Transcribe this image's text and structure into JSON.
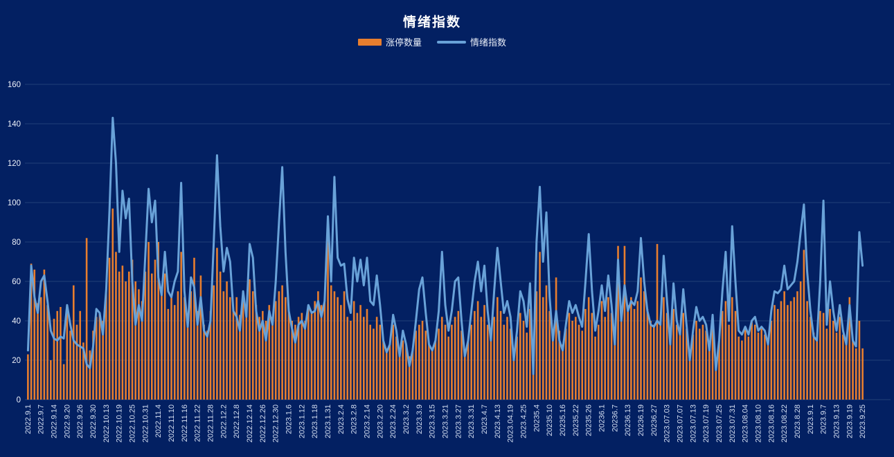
{
  "chart": {
    "title": "情绪指数",
    "legend": [
      {
        "label": "涨停数量",
        "type": "bar",
        "swatch": "orange-bar-swatch"
      },
      {
        "label": "情绪指数",
        "type": "line",
        "swatch": "blue-line-swatch"
      }
    ]
  },
  "colors": {
    "background": "#032062",
    "grid": "#223f78",
    "y_axis_text": "#edf1f9",
    "x_axis_text": "#d5dff2",
    "bar": "#e87e2e",
    "line": "#69a2d8",
    "title_text": "#ffffff"
  },
  "chart_data": {
    "type": "bar",
    "subtype": "bar+line combo",
    "title": "情绪指数",
    "xlabel": "",
    "ylabel": "",
    "ylim": [
      0,
      160
    ],
    "y_ticks": [
      0,
      20,
      40,
      60,
      80,
      100,
      120,
      140,
      160
    ],
    "grid": true,
    "legend_position": "top",
    "label_every": 4,
    "x_labels": [
      "2022.9.1",
      "2022.9.7",
      "2022.9.14",
      "2022.9.20",
      "2022.9.26",
      "2022.9.30",
      "2022.10.13",
      "2022.10.19",
      "2022.10.25",
      "2022.10.31",
      "2022.11.4",
      "2022.11.10",
      "2022.11.16",
      "2022.11.22",
      "2022.11.28",
      "2022.12.2",
      "2022.12.8",
      "2022.12.14",
      "2022.12.26",
      "2022.12.30",
      "2023.1.6",
      "2023.1.12",
      "2023.1.18",
      "2023.1.31",
      "2023.2.4",
      "2023.2.8",
      "2023.2.14",
      "2023.2.20",
      "2023.2.24",
      "2023.3.2",
      "2023.3.9",
      "2023.3.15",
      "2023.3.21",
      "2023.3.27",
      "2023.3.31",
      "2023.4.7",
      "2023.4.13",
      "2023.04.19",
      "2023.4.25",
      "20235.4",
      "20235.10",
      "20235.16",
      "20235.22",
      "20235.26",
      "20236.1",
      "20236.7",
      "20236.13",
      "20236.19",
      "20236.27",
      "2023.07.03",
      "2023.07.07",
      "2023.07.13",
      "2023.07.19",
      "2023.07.25",
      "2023.07.31",
      "2023.08.04",
      "2023.08.10",
      "2023.08.16",
      "2023.08.22",
      "2023.8.28",
      "2023.9.1",
      "2023.9.7",
      "2023.9.13",
      "2023.9.19",
      "2023.9.25"
    ],
    "series": [
      {
        "name": "涨停数量",
        "type": "bar",
        "color": "#e87e2e",
        "values": [
          23,
          69,
          66,
          49,
          52,
          66,
          48,
          20,
          41,
          45,
          47,
          18,
          48,
          35,
          58,
          38,
          45,
          29,
          82,
          25,
          35,
          42,
          44,
          40,
          57,
          72,
          97,
          75,
          65,
          68,
          60,
          65,
          71,
          60,
          56,
          50,
          65,
          80,
          64,
          71,
          80,
          55,
          64,
          46,
          52,
          48,
          55,
          75,
          52,
          40,
          55,
          72,
          45,
          63,
          38,
          35,
          45,
          58,
          77,
          65,
          55,
          60,
          52,
          45,
          52,
          43,
          50,
          45,
          61,
          55,
          48,
          42,
          45,
          40,
          48,
          42,
          50,
          55,
          58,
          52,
          45,
          40,
          38,
          42,
          44,
          40,
          48,
          44,
          50,
          55,
          48,
          52,
          93,
          58,
          55,
          52,
          48,
          55,
          42,
          40,
          50,
          44,
          48,
          42,
          46,
          38,
          36,
          42,
          38,
          30,
          26,
          28,
          38,
          32,
          25,
          30,
          28,
          22,
          26,
          35,
          38,
          40,
          35,
          28,
          26,
          30,
          36,
          42,
          38,
          32,
          38,
          42,
          45,
          35,
          25,
          30,
          38,
          45,
          50,
          42,
          48,
          38,
          30,
          42,
          52,
          45,
          38,
          42,
          36,
          24,
          32,
          44,
          40,
          34,
          46,
          18,
          55,
          75,
          52,
          58,
          45,
          32,
          62,
          35,
          28,
          36,
          44,
          40,
          42,
          38,
          35,
          46,
          52,
          44,
          32,
          38,
          50,
          42,
          52,
          44,
          35,
          78,
          45,
          78,
          48,
          52,
          46,
          50,
          62,
          55,
          46,
          40,
          38,
          79,
          40,
          52,
          44,
          32,
          46,
          38,
          35,
          44,
          36,
          25,
          33,
          40,
          36,
          38,
          35,
          28,
          38,
          20,
          30,
          45,
          50,
          38,
          52,
          45,
          32,
          30,
          36,
          32,
          40,
          38,
          34,
          36,
          33,
          28,
          40,
          48,
          46,
          50,
          55,
          48,
          50,
          52,
          55,
          60,
          76,
          50,
          42,
          34,
          32,
          45,
          44,
          36,
          46,
          40,
          34,
          42,
          33,
          28,
          52,
          30,
          26,
          40,
          26
        ]
      },
      {
        "name": "情绪指数",
        "type": "line",
        "color": "#69a2d8",
        "values": [
          25,
          68,
          52,
          44,
          60,
          63,
          50,
          35,
          31,
          30,
          32,
          31,
          48,
          38,
          30,
          28,
          27,
          26,
          18,
          16,
          27,
          46,
          44,
          33,
          56,
          96,
          143,
          120,
          75,
          106,
          92,
          102,
          60,
          38,
          48,
          40,
          73,
          107,
          90,
          101,
          62,
          53,
          75,
          55,
          52,
          60,
          65,
          110,
          55,
          37,
          62,
          57,
          38,
          52,
          35,
          32,
          40,
          80,
          124,
          88,
          65,
          77,
          70,
          45,
          42,
          35,
          55,
          42,
          79,
          72,
          45,
          35,
          40,
          30,
          45,
          38,
          60,
          90,
          118,
          75,
          45,
          36,
          29,
          38,
          40,
          36,
          48,
          44,
          45,
          50,
          42,
          50,
          93,
          60,
          113,
          72,
          68,
          69,
          51,
          44,
          72,
          60,
          71,
          58,
          72,
          50,
          48,
          63,
          48,
          30,
          24,
          28,
          43,
          35,
          22,
          35,
          28,
          17,
          25,
          40,
          56,
          62,
          44,
          28,
          25,
          30,
          45,
          75,
          48,
          35,
          45,
          60,
          62,
          40,
          22,
          30,
          45,
          60,
          70,
          55,
          68,
          45,
          30,
          55,
          77,
          60,
          44,
          50,
          42,
          20,
          35,
          55,
          50,
          37,
          59,
          13,
          80,
          108,
          70,
          95,
          52,
          30,
          45,
          30,
          25,
          38,
          50,
          44,
          48,
          42,
          37,
          60,
          84,
          55,
          35,
          45,
          58,
          45,
          63,
          48,
          28,
          71,
          40,
          58,
          45,
          50,
          48,
          55,
          82,
          60,
          45,
          38,
          37,
          40,
          38,
          73,
          50,
          28,
          59,
          40,
          33,
          56,
          38,
          20,
          35,
          47,
          40,
          42,
          38,
          25,
          43,
          15,
          30,
          55,
          75,
          40,
          88,
          60,
          35,
          33,
          37,
          33,
          40,
          42,
          35,
          37,
          35,
          28,
          45,
          55,
          54,
          56,
          68,
          56,
          58,
          60,
          70,
          85,
          99,
          65,
          45,
          32,
          30,
          60,
          101,
          38,
          60,
          45,
          35,
          48,
          35,
          28,
          48,
          30,
          27,
          85,
          68
        ]
      }
    ]
  }
}
